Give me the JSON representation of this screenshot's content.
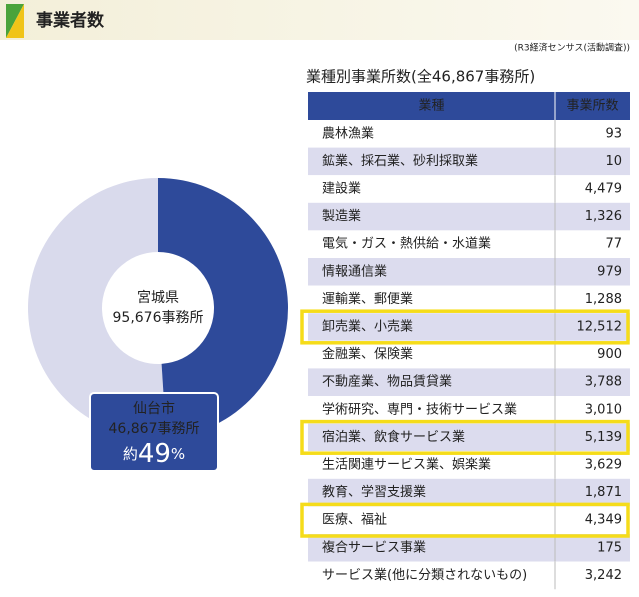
{
  "header": {
    "title": "事業者数",
    "source": "(R3経済センサス(活動調査))"
  },
  "chart_data": {
    "type": "donut",
    "total": {
      "name": "宮城県",
      "value": 95676,
      "value_label": "95,676事務所"
    },
    "series": [
      {
        "name": "仙台市",
        "value": 46867,
        "value_label": "46,867事務所",
        "color": "#2e4a9a",
        "share_prefix": "約",
        "share": 49,
        "share_unit": "%"
      }
    ],
    "rest_color": "#d9daec"
  },
  "table": {
    "title": "業種別事業所数(全46,867事務所)",
    "columns": [
      "業種",
      "事業所数"
    ],
    "rows": [
      {
        "name": "農林漁業",
        "count": "93"
      },
      {
        "name": "鉱業、採石業、砂利採取業",
        "count": "10"
      },
      {
        "name": "建設業",
        "count": "4,479"
      },
      {
        "name": "製造業",
        "count": "1,326"
      },
      {
        "name": "電気・ガス・熱供給・水道業",
        "count": "77"
      },
      {
        "name": "情報通信業",
        "count": "979"
      },
      {
        "name": "運輸業、郵便業",
        "count": "1,288"
      },
      {
        "name": "卸売業、小売業",
        "count": "12,512",
        "highlight": true
      },
      {
        "name": "金融業、保険業",
        "count": "900"
      },
      {
        "name": "不動産業、物品賃貸業",
        "count": "3,788"
      },
      {
        "name": "学術研究、専門・技術サービス業",
        "count": "3,010"
      },
      {
        "name": "宿泊業、飲食サービス業",
        "count": "5,139",
        "highlight": true
      },
      {
        "name": "生活関連サービス業、娯楽業",
        "count": "3,629"
      },
      {
        "name": "教育、学習支援業",
        "count": "1,871"
      },
      {
        "name": "医療、福祉",
        "count": "4,349",
        "highlight": true
      },
      {
        "name": "複合サービス事業",
        "count": "175"
      },
      {
        "name": "サービス業(他に分類されないもの)",
        "count": "3,242"
      }
    ]
  }
}
